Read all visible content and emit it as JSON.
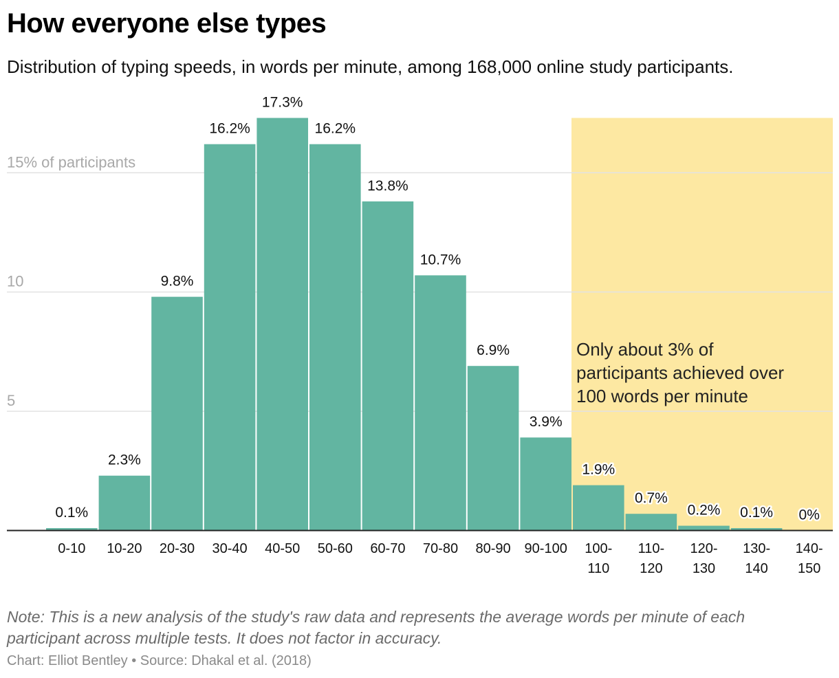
{
  "header": {
    "title": "How everyone else types",
    "subtitle": "Distribution of typing speeds, in words per minute, among 168,000 online study participants."
  },
  "chart_data": {
    "type": "bar",
    "categories": [
      "0-10",
      "10-20",
      "20-30",
      "30-40",
      "40-50",
      "50-60",
      "60-70",
      "70-80",
      "80-90",
      "90-100",
      "100-110",
      "110-120",
      "120-130",
      "130-140",
      "140-150"
    ],
    "category_lines": [
      [
        "0-10"
      ],
      [
        "10-20"
      ],
      [
        "20-30"
      ],
      [
        "30-40"
      ],
      [
        "40-50"
      ],
      [
        "50-60"
      ],
      [
        "60-70"
      ],
      [
        "70-80"
      ],
      [
        "80-90"
      ],
      [
        "90-100"
      ],
      [
        "100-",
        "110"
      ],
      [
        "110-",
        "120"
      ],
      [
        "120-",
        "130"
      ],
      [
        "130-",
        "140"
      ],
      [
        "140-",
        "150"
      ]
    ],
    "values": [
      0.1,
      2.3,
      9.8,
      16.2,
      17.3,
      16.2,
      13.8,
      10.7,
      6.9,
      3.9,
      1.9,
      0.7,
      0.2,
      0.1,
      0
    ],
    "value_labels": [
      "0.1%",
      "2.3%",
      "9.8%",
      "16.2%",
      "17.3%",
      "16.2%",
      "13.8%",
      "10.7%",
      "6.9%",
      "3.9%",
      "1.9%",
      "0.7%",
      "0.2%",
      "0.1%",
      "0%"
    ],
    "y_ticks": [
      {
        "value": 5,
        "label": "5"
      },
      {
        "value": 10,
        "label": "10"
      },
      {
        "value": 15,
        "label": "15% of participants"
      }
    ],
    "ylim": [
      0,
      17.3
    ],
    "xlabel": "",
    "ylabel": "% of participants",
    "highlight": {
      "from_index": 10,
      "to_index": 14,
      "lines": [
        "Only about 3% of",
        "participants achieved over",
        "100 words per minute"
      ]
    },
    "colors": {
      "bar": "#62b5a1",
      "highlight": "#fde8a2",
      "grid": "#e2e2e2",
      "axis_label": "#a8a8a8",
      "baseline": "#222222"
    }
  },
  "footer": {
    "note": "Note: This is a new analysis of the study's raw data and represents the average words per minute of each participant across multiple tests. It does not factor in accuracy.",
    "credit": "Chart: Elliot Bentley • Source: Dhakal et al. (2018)"
  }
}
